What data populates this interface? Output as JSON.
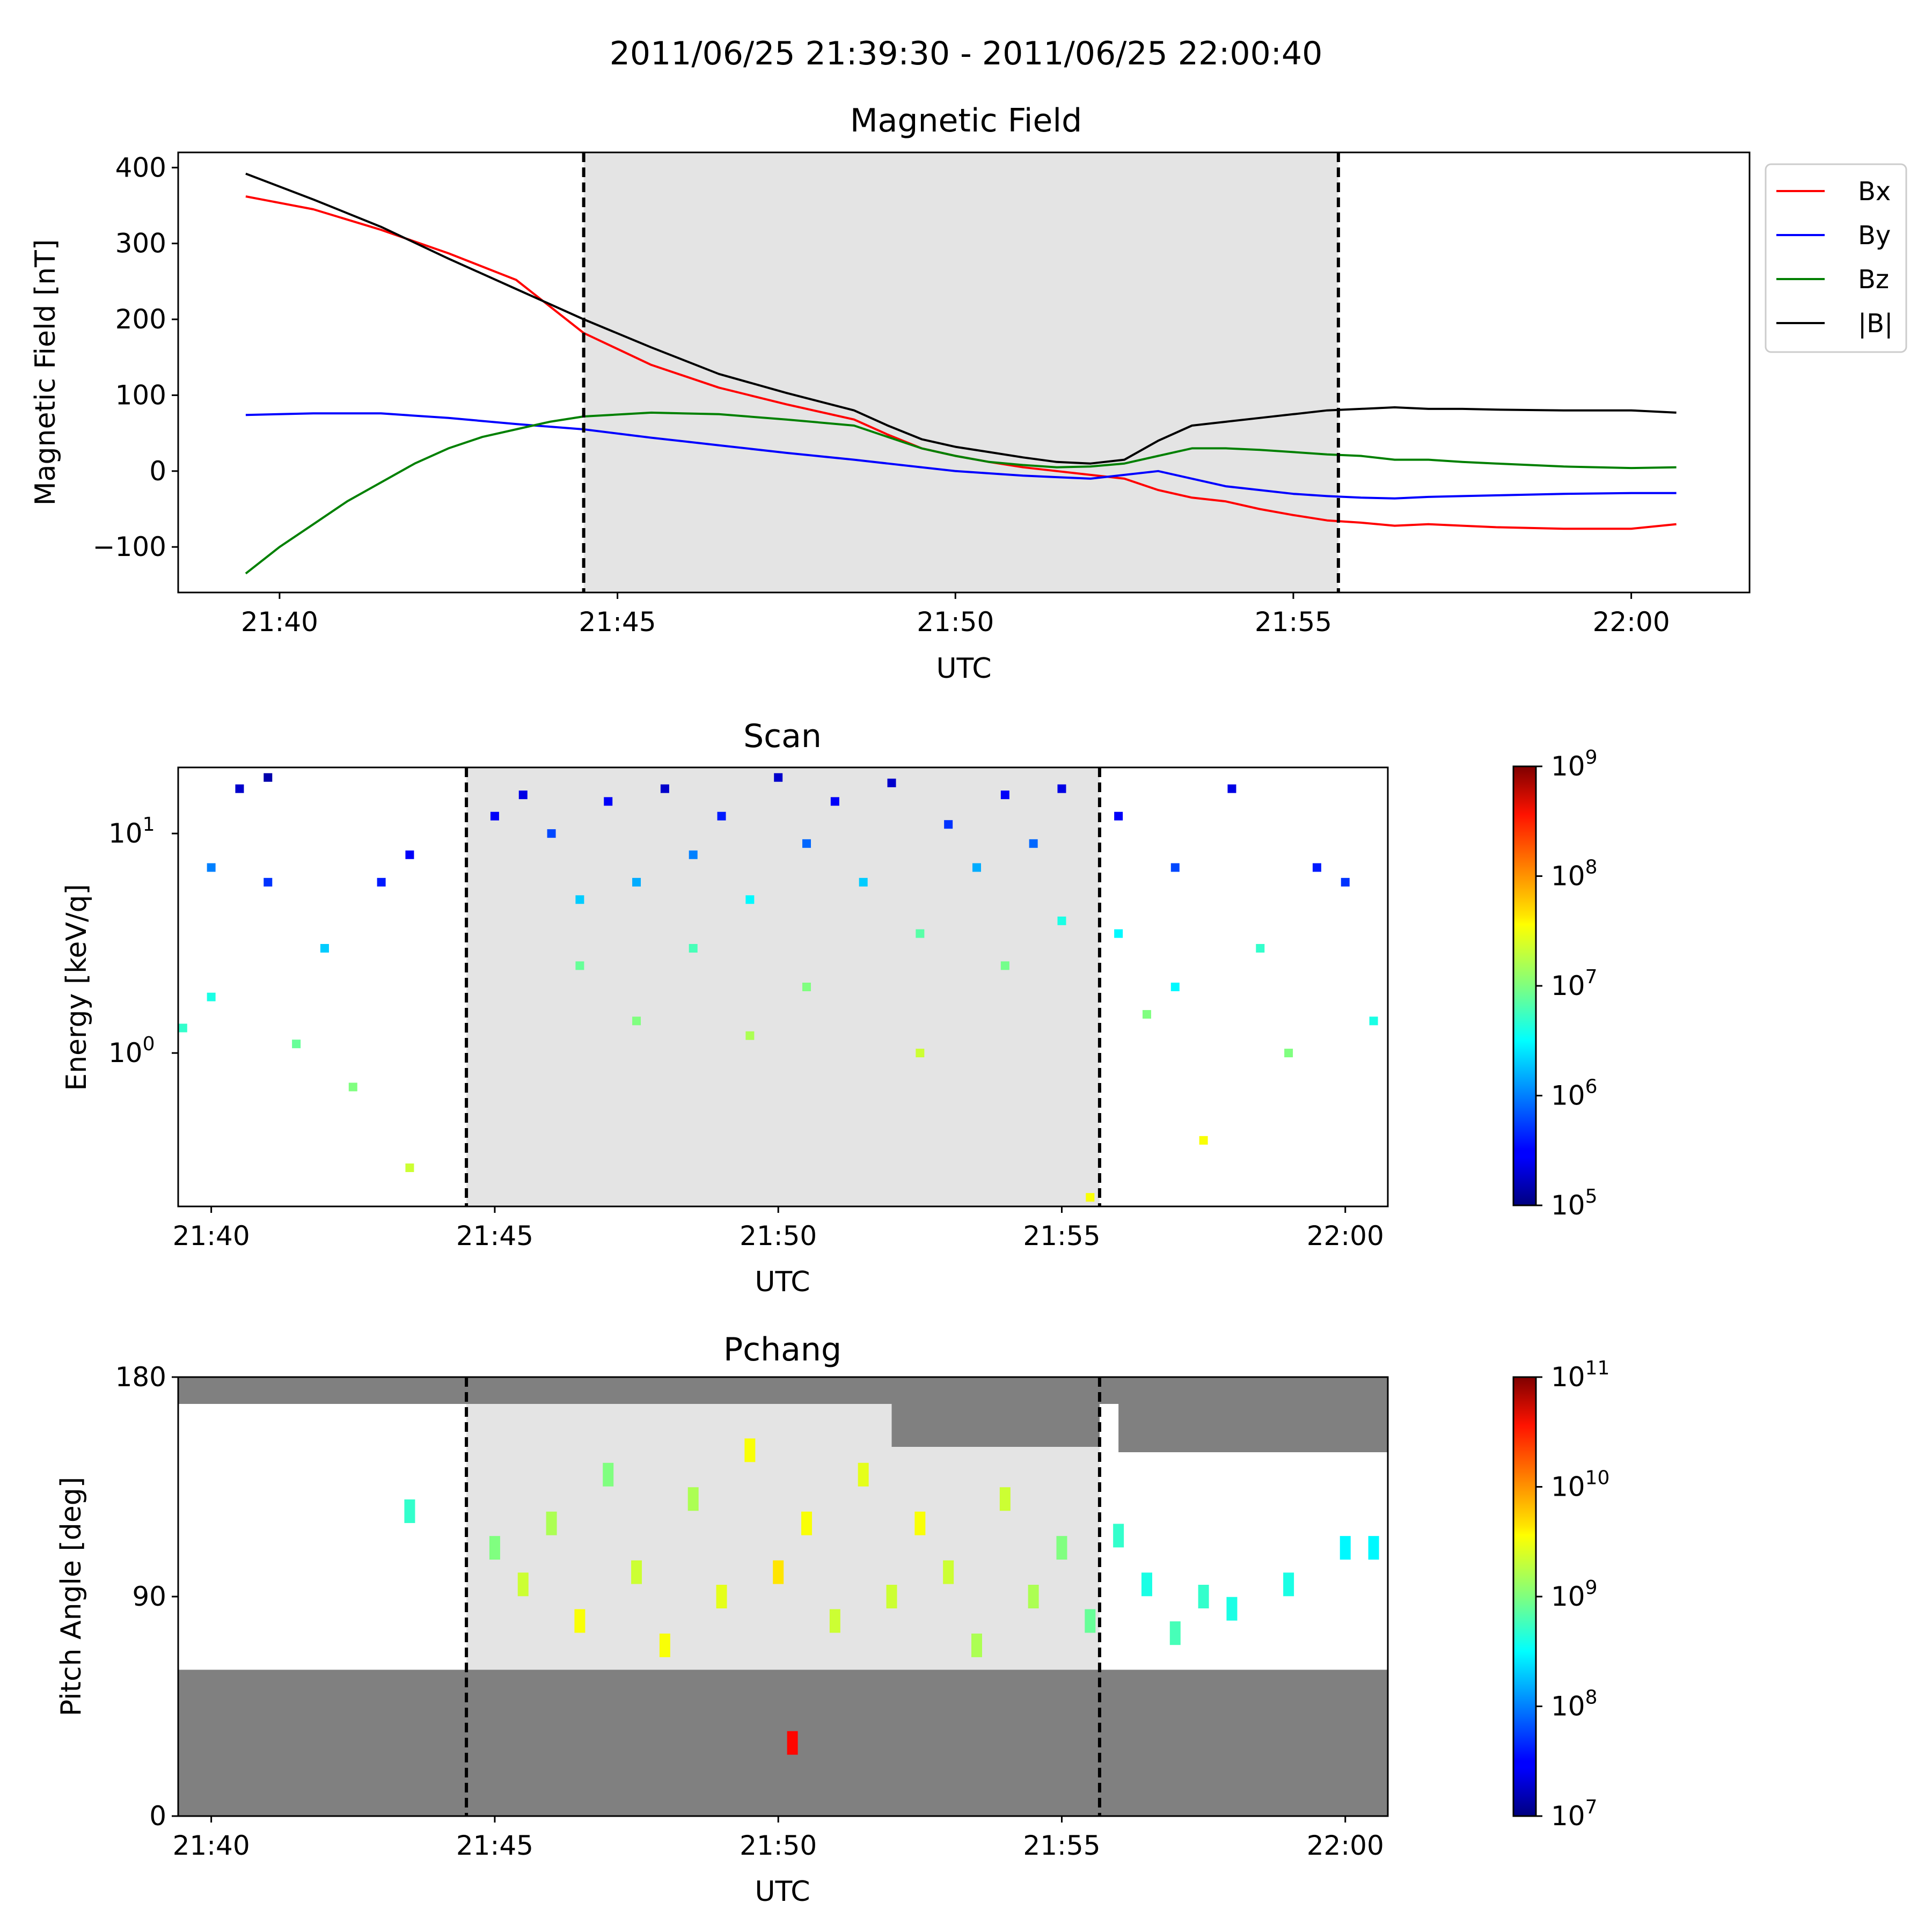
{
  "figure": {
    "suptitle": "2011/06/25 21:39:30 - 2011/06/25 22:00:40",
    "shaded_interval": [
      "21:44:30",
      "21:55:40"
    ],
    "colors": {
      "Bx": "#ff0000",
      "By": "#0000ff",
      "Bz": "#008000",
      "absB": "#000000",
      "shade": "#e4e4e4",
      "no_coverage": "#808080"
    }
  },
  "chart_data": [
    {
      "type": "line",
      "title": "Magnetic Field",
      "xlabel": "UTC",
      "ylabel": "Magnetic Field [nT]",
      "xlim": [
        "21:38:30",
        "22:01:45"
      ],
      "ylim": [
        -160,
        420
      ],
      "xticks": [
        "21:40",
        "21:45",
        "21:50",
        "21:55",
        "22:00"
      ],
      "yticks": [
        400,
        300,
        200,
        100,
        0,
        -100
      ],
      "ytick_labels": [
        "400",
        "300",
        "200",
        "100",
        "0",
        "−100"
      ],
      "legend_position": "outside-right",
      "series": [
        {
          "name": "Bx",
          "x": [
            "21:39:30",
            "21:40:30",
            "21:41:30",
            "21:42:30",
            "21:43:30",
            "21:44:30",
            "21:45:30",
            "21:46:30",
            "21:47:30",
            "21:48:30",
            "21:49:00",
            "21:49:30",
            "21:50:00",
            "21:50:30",
            "21:51:00",
            "21:51:30",
            "21:52:00",
            "21:52:30",
            "21:53:00",
            "21:53:30",
            "21:54:00",
            "21:54:30",
            "21:55:00",
            "21:55:30",
            "21:56:00",
            "21:56:30",
            "21:57:00",
            "21:57:30",
            "21:58:00",
            "21:59:00",
            "22:00:00",
            "22:00:40"
          ],
          "values": [
            362,
            345,
            318,
            287,
            252,
            182,
            140,
            110,
            88,
            68,
            48,
            30,
            20,
            12,
            5,
            0,
            -5,
            -10,
            -25,
            -35,
            -40,
            -50,
            -58,
            -65,
            -68,
            -72,
            -70,
            -72,
            -74,
            -76,
            -76,
            -70
          ]
        },
        {
          "name": "By",
          "x": [
            "21:39:30",
            "21:40:30",
            "21:41:30",
            "21:42:30",
            "21:43:30",
            "21:44:30",
            "21:45:30",
            "21:46:30",
            "21:47:30",
            "21:48:30",
            "21:49:00",
            "21:49:30",
            "21:50:00",
            "21:50:30",
            "21:51:00",
            "21:51:30",
            "21:52:00",
            "21:52:30",
            "21:53:00",
            "21:53:30",
            "21:54:00",
            "21:54:30",
            "21:55:00",
            "21:55:30",
            "21:56:00",
            "21:56:30",
            "21:57:00",
            "21:57:30",
            "21:58:00",
            "21:59:00",
            "22:00:00",
            "22:00:40"
          ],
          "values": [
            74,
            76,
            76,
            70,
            62,
            55,
            44,
            34,
            24,
            15,
            10,
            5,
            0,
            -3,
            -6,
            -8,
            -10,
            -5,
            0,
            -10,
            -20,
            -25,
            -30,
            -33,
            -35,
            -36,
            -34,
            -33,
            -32,
            -30,
            -29,
            -29
          ]
        },
        {
          "name": "Bz",
          "x": [
            "21:39:30",
            "21:40:00",
            "21:40:30",
            "21:41:00",
            "21:41:30",
            "21:42:00",
            "21:42:30",
            "21:43:00",
            "21:43:30",
            "21:44:00",
            "21:44:30",
            "21:45:30",
            "21:46:30",
            "21:47:30",
            "21:48:30",
            "21:49:00",
            "21:49:30",
            "21:50:00",
            "21:50:30",
            "21:51:00",
            "21:51:30",
            "21:52:00",
            "21:52:30",
            "21:53:00",
            "21:53:30",
            "21:54:00",
            "21:54:30",
            "21:55:00",
            "21:55:30",
            "21:56:00",
            "21:56:30",
            "21:57:00",
            "21:57:30",
            "21:58:00",
            "21:59:00",
            "22:00:00",
            "22:00:40"
          ],
          "values": [
            -135,
            -100,
            -70,
            -40,
            -15,
            10,
            30,
            45,
            55,
            65,
            72,
            77,
            75,
            68,
            60,
            45,
            30,
            20,
            12,
            8,
            5,
            6,
            10,
            20,
            30,
            30,
            28,
            25,
            22,
            20,
            15,
            15,
            12,
            10,
            6,
            4,
            5
          ]
        },
        {
          "name": "|B|",
          "x": [
            "21:39:30",
            "21:40:30",
            "21:41:30",
            "21:42:30",
            "21:43:30",
            "21:44:30",
            "21:45:30",
            "21:46:30",
            "21:47:30",
            "21:48:30",
            "21:49:00",
            "21:49:30",
            "21:50:00",
            "21:50:30",
            "21:51:00",
            "21:51:30",
            "21:52:00",
            "21:52:30",
            "21:53:00",
            "21:53:30",
            "21:54:00",
            "21:54:30",
            "21:55:00",
            "21:55:30",
            "21:56:00",
            "21:56:30",
            "21:57:00",
            "21:57:30",
            "21:58:00",
            "21:59:00",
            "22:00:00",
            "22:00:40"
          ],
          "values": [
            392,
            358,
            322,
            280,
            240,
            200,
            163,
            128,
            103,
            80,
            60,
            42,
            32,
            25,
            18,
            12,
            10,
            15,
            40,
            60,
            65,
            70,
            75,
            80,
            82,
            84,
            82,
            82,
            81,
            80,
            80,
            77
          ]
        }
      ]
    },
    {
      "type": "heatmap",
      "title": "Scan",
      "xlabel": "UTC",
      "ylabel": "Energy [keV/q]",
      "xlim": [
        "21:39:25",
        "22:00:45"
      ],
      "ylim": [
        0.2,
        20
      ],
      "yscale": "log",
      "xticks": [
        "21:40",
        "21:45",
        "21:50",
        "21:55",
        "22:00"
      ],
      "yticks": [
        10,
        1
      ],
      "ytick_labels": [
        [
          "10",
          "1"
        ],
        [
          "10",
          "0"
        ]
      ],
      "colorscale": "jet",
      "colorbar_range": [
        100000.0,
        1000000000.0
      ],
      "colorbar_ticks": [
        [
          "10",
          "9"
        ],
        [
          "10",
          "8"
        ],
        [
          "10",
          "7"
        ],
        [
          "10",
          "6"
        ],
        [
          "10",
          "5"
        ]
      ],
      "cells": [
        [
          "21:40:00",
          7.0,
          1000000.0
        ],
        [
          "21:40:30",
          16,
          200000.0
        ],
        [
          "21:41:00",
          18,
          150000.0
        ],
        [
          "21:41:00",
          6,
          500000.0
        ],
        [
          "21:42:00",
          3.0,
          2000000.0
        ],
        [
          "21:43:00",
          6,
          400000.0
        ],
        [
          "21:43:30",
          8,
          300000.0
        ],
        [
          "21:39:30",
          1.3,
          5000000.0
        ],
        [
          "21:40:00",
          1.8,
          4000000.0
        ],
        [
          "21:41:30",
          1.1,
          8000000.0
        ],
        [
          "21:42:30",
          0.7,
          10000000.0
        ],
        [
          "21:43:30",
          0.3,
          20000000.0
        ],
        [
          "21:45:00",
          12,
          300000.0
        ],
        [
          "21:45:30",
          15,
          250000.0
        ],
        [
          "21:46:00",
          10,
          600000.0
        ],
        [
          "21:46:30",
          5,
          2000000.0
        ],
        [
          "21:46:30",
          2.5,
          8000000.0
        ],
        [
          "21:47:00",
          14,
          300000.0
        ],
        [
          "21:47:30",
          6,
          1500000.0
        ],
        [
          "21:47:30",
          1.4,
          10000000.0
        ],
        [
          "21:48:00",
          16,
          200000.0
        ],
        [
          "21:48:30",
          8,
          1000000.0
        ],
        [
          "21:48:30",
          3,
          6000000.0
        ],
        [
          "21:49:00",
          12,
          400000.0
        ],
        [
          "21:49:30",
          5,
          3000000.0
        ],
        [
          "21:49:30",
          1.2,
          15000000.0
        ],
        [
          "21:50:00",
          18,
          200000.0
        ],
        [
          "21:50:30",
          9,
          800000.0
        ],
        [
          "21:50:30",
          2.0,
          10000000.0
        ],
        [
          "21:51:00",
          14,
          300000.0
        ],
        [
          "21:51:30",
          6,
          2000000.0
        ],
        [
          "21:52:00",
          17,
          200000.0
        ],
        [
          "21:52:30",
          3.5,
          7000000.0
        ],
        [
          "21:52:30",
          1.0,
          20000000.0
        ],
        [
          "21:53:00",
          11,
          500000.0
        ],
        [
          "21:53:30",
          7,
          1500000.0
        ],
        [
          "21:54:00",
          15,
          300000.0
        ],
        [
          "21:54:00",
          2.5,
          9000000.0
        ],
        [
          "21:54:30",
          9,
          800000.0
        ],
        [
          "21:55:00",
          16,
          250000.0
        ],
        [
          "21:55:00",
          4,
          4000000.0
        ],
        [
          "21:55:30",
          0.22,
          30000000.0
        ],
        [
          "21:56:00",
          12,
          300000.0
        ],
        [
          "21:56:00",
          3.5,
          3000000.0
        ],
        [
          "21:56:30",
          1.5,
          10000000.0
        ],
        [
          "21:57:00",
          7,
          600000.0
        ],
        [
          "21:57:00",
          2.0,
          3000000.0
        ],
        [
          "21:57:30",
          0.4,
          30000000.0
        ],
        [
          "21:58:00",
          16,
          250000.0
        ],
        [
          "21:58:30",
          3,
          5000000.0
        ],
        [
          "21:59:00",
          1.0,
          10000000.0
        ],
        [
          "21:59:30",
          7,
          400000.0
        ],
        [
          "22:00:00",
          6,
          500000.0
        ],
        [
          "22:00:30",
          1.4,
          4000000.0
        ]
      ]
    },
    {
      "type": "heatmap",
      "title": "Pchang",
      "xlabel": "UTC",
      "ylabel": "Pitch Angle [deg]",
      "xlim": [
        "21:39:25",
        "22:00:45"
      ],
      "ylim": [
        0,
        180
      ],
      "xticks": [
        "21:40",
        "21:45",
        "21:50",
        "21:55",
        "22:00"
      ],
      "yticks": [
        180,
        90,
        0
      ],
      "colorscale": "jet",
      "colorbar_range": [
        10000000.0,
        100000000000.0
      ],
      "colorbar_ticks": [
        [
          "10",
          "11"
        ],
        [
          "10",
          "10"
        ],
        [
          "10",
          "9"
        ],
        [
          "10",
          "8"
        ],
        [
          "10",
          "7"
        ]
      ],
      "cells": [
        [
          "21:43:30",
          125,
          500000000.0
        ],
        [
          "21:45:00",
          110,
          1000000000.0
        ],
        [
          "21:45:30",
          95,
          2000000000.0
        ],
        [
          "21:46:00",
          120,
          1500000000.0
        ],
        [
          "21:46:30",
          80,
          3000000000.0
        ],
        [
          "21:47:00",
          140,
          1000000000.0
        ],
        [
          "21:47:30",
          100,
          2000000000.0
        ],
        [
          "21:48:00",
          70,
          3000000000.0
        ],
        [
          "21:48:30",
          130,
          1500000000.0
        ],
        [
          "21:49:00",
          90,
          2500000000.0
        ],
        [
          "21:49:30",
          150,
          3000000000.0
        ],
        [
          "21:50:00",
          100,
          4000000000.0
        ],
        [
          "21:50:15",
          30,
          30000000000.0
        ],
        [
          "21:50:30",
          120,
          3000000000.0
        ],
        [
          "21:51:00",
          80,
          2000000000.0
        ],
        [
          "21:51:30",
          140,
          2500000000.0
        ],
        [
          "21:52:00",
          90,
          2000000000.0
        ],
        [
          "21:52:30",
          120,
          3000000000.0
        ],
        [
          "21:53:00",
          100,
          2000000000.0
        ],
        [
          "21:53:30",
          70,
          1500000000.0
        ],
        [
          "21:54:00",
          130,
          2000000000.0
        ],
        [
          "21:54:30",
          90,
          1500000000.0
        ],
        [
          "21:55:00",
          110,
          1000000000.0
        ],
        [
          "21:55:30",
          80,
          800000000.0
        ],
        [
          "21:56:00",
          115,
          500000000.0
        ],
        [
          "21:56:30",
          95,
          400000000.0
        ],
        [
          "21:57:00",
          75,
          600000000.0
        ],
        [
          "21:57:30",
          90,
          500000000.0
        ],
        [
          "21:58:00",
          85,
          400000000.0
        ],
        [
          "21:59:00",
          95,
          400000000.0
        ],
        [
          "22:00:00",
          110,
          300000000.0
        ],
        [
          "22:00:30",
          110,
          300000000.0
        ]
      ]
    }
  ]
}
